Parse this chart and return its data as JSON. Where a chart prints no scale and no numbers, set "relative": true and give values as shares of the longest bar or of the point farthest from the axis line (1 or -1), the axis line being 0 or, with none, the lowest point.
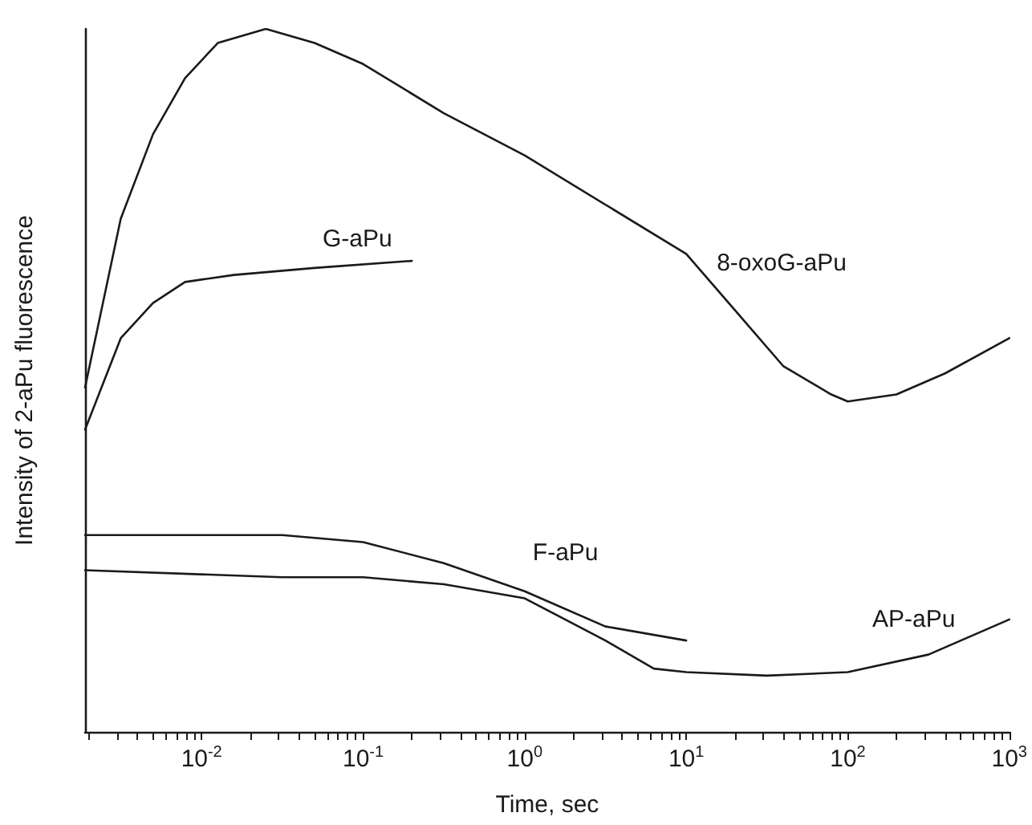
{
  "chart_data": {
    "type": "line",
    "relative": true,
    "xlabel": "Time, sec",
    "ylabel": "Intensity of 2-aPu fluorescence",
    "log": "x",
    "xlim": [
      0.0019,
      1000
    ],
    "marker": "none",
    "line_style": "solid",
    "grid": false,
    "legend": false,
    "tick_labels": "x",
    "xticks": [
      {
        "value": 0.002,
        "label": null
      },
      {
        "value": 0.003,
        "label": null
      },
      {
        "value": 0.004,
        "label": null
      },
      {
        "value": 0.005,
        "label": null
      },
      {
        "value": 0.006,
        "label": null
      },
      {
        "value": 0.007,
        "label": null
      },
      {
        "value": 0.008,
        "label": null
      },
      {
        "value": 0.009,
        "label": null
      },
      {
        "value": 0.01,
        "label": "10$^{-2}$"
      },
      {
        "value": 0.02,
        "label": null
      },
      {
        "value": 0.03,
        "label": null
      },
      {
        "value": 0.04,
        "label": null
      },
      {
        "value": 0.05,
        "label": null
      },
      {
        "value": 0.06,
        "label": null
      },
      {
        "value": 0.07,
        "label": null
      },
      {
        "value": 0.08,
        "label": null
      },
      {
        "value": 0.09,
        "label": null
      },
      {
        "value": 0.1,
        "label": "10$^{-1}$"
      },
      {
        "value": 0.2,
        "label": null
      },
      {
        "value": 0.3,
        "label": null
      },
      {
        "value": 0.4,
        "label": null
      },
      {
        "value": 0.5,
        "label": null
      },
      {
        "value": 0.6,
        "label": null
      },
      {
        "value": 0.7,
        "label": null
      },
      {
        "value": 0.8,
        "label": null
      },
      {
        "value": 0.9,
        "label": null
      },
      {
        "value": 1,
        "label": "10$^{0}$"
      },
      {
        "value": 2,
        "label": null
      },
      {
        "value": 3,
        "label": null
      },
      {
        "value": 4,
        "label": null
      },
      {
        "value": 5,
        "label": null
      },
      {
        "value": 6,
        "label": null
      },
      {
        "value": 7,
        "label": null
      },
      {
        "value": 8,
        "label": null
      },
      {
        "value": 9,
        "label": null
      },
      {
        "value": 10,
        "label": "10$^{1}$"
      },
      {
        "value": 20,
        "label": null
      },
      {
        "value": 30,
        "label": null
      },
      {
        "value": 40,
        "label": null
      },
      {
        "value": 50,
        "label": null
      },
      {
        "value": 60,
        "label": null
      },
      {
        "value": 70,
        "label": null
      },
      {
        "value": 80,
        "label": null
      },
      {
        "value": 90,
        "label": null
      },
      {
        "value": 100,
        "label": "10$^{2}$"
      },
      {
        "value": 200,
        "label": null
      },
      {
        "value": 300,
        "label": null
      },
      {
        "value": 400,
        "label": null
      },
      {
        "value": 500,
        "label": null
      },
      {
        "value": 600,
        "label": null
      },
      {
        "value": 700,
        "label": null
      },
      {
        "value": 800,
        "label": null
      },
      {
        "value": 900,
        "label": null
      },
      {
        "value": 1000,
        "label": "10$^{3}$"
      }
    ],
    "series": [
      {
        "name": "8-oxoG-aPu",
        "color": "#1a1a1a",
        "x": [
          0.0019,
          0.00316,
          0.005,
          0.0079,
          0.0126,
          0.025,
          0.05,
          0.1,
          0.316,
          1,
          3.16,
          10,
          20,
          40,
          79,
          100,
          200,
          400,
          1000
        ],
        "values": [
          0.49,
          0.73,
          0.85,
          0.93,
          0.98,
          1,
          0.98,
          0.95,
          0.88,
          0.82,
          0.75,
          0.68,
          0.6,
          0.52,
          0.48,
          0.47,
          0.48,
          0.51,
          0.56
        ]
      },
      {
        "name": "G-aPu",
        "color": "#1a1a1a",
        "x": [
          0.0019,
          0.00316,
          0.005,
          0.0079,
          0.0158,
          0.05,
          0.2
        ],
        "values": [
          0.43,
          0.56,
          0.61,
          0.64,
          0.65,
          0.66,
          0.67
        ]
      },
      {
        "name": "F-aPu",
        "color": "#1a1a1a",
        "x": [
          0.0019,
          0.01,
          0.0316,
          0.1,
          0.316,
          1,
          3.16,
          10
        ],
        "values": [
          0.28,
          0.28,
          0.28,
          0.27,
          0.24,
          0.2,
          0.15,
          0.13
        ]
      },
      {
        "name": "AP-aPu",
        "color": "#1a1a1a",
        "x": [
          0.0019,
          0.0316,
          0.1,
          0.316,
          1,
          3.16,
          6.3,
          10,
          31.6,
          100,
          316,
          1000
        ],
        "values": [
          0.23,
          0.22,
          0.22,
          0.21,
          0.19,
          0.13,
          0.09,
          0.085,
          0.08,
          0.085,
          0.11,
          0.16
        ]
      }
    ]
  }
}
